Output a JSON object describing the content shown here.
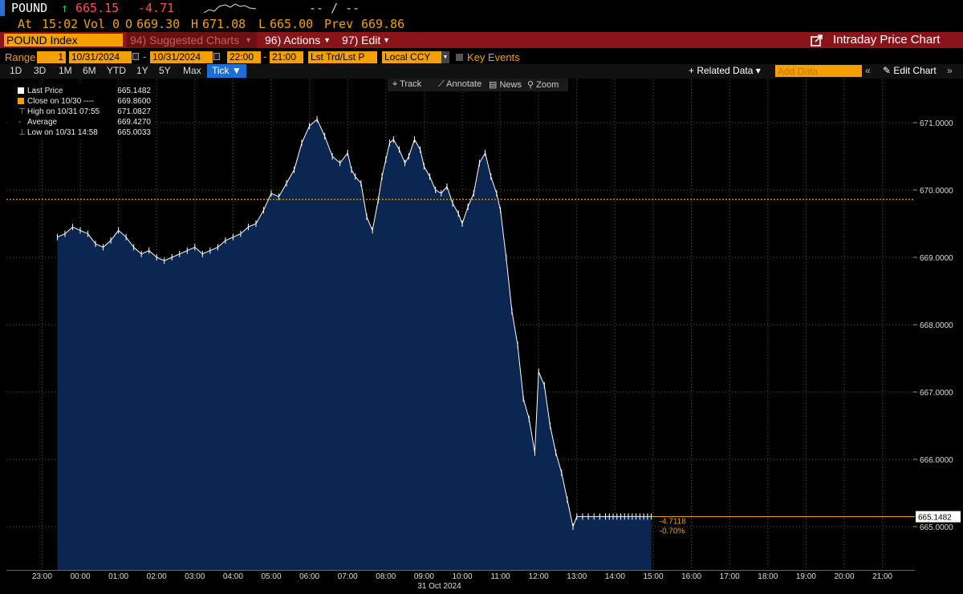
{
  "quote": {
    "ticker": "POUND",
    "arrow": "↑",
    "last": "665.15",
    "change": "-4.71",
    "sparkline_icon": "sparkline-icon",
    "dashes": "-- / --",
    "at_label": "At",
    "time": "15:02",
    "vol_label": "Vol",
    "vol": "0",
    "open_label": "O",
    "open": "669.30",
    "high_label": "H",
    "high": "671.08",
    "low_label": "L",
    "low": "665.00",
    "prev_label": "Prev",
    "prev": "669.86"
  },
  "titlebar": {
    "security": "POUND Index",
    "suggested": "94) Suggested Charts",
    "actions": "96) Actions",
    "edit": "97) Edit",
    "title": "Intraday Price Chart"
  },
  "rangebar": {
    "range_label": "Range",
    "range_value": "1",
    "start_date": "10/31/2024",
    "end_date": "10/31/2024",
    "start_time": "22:00",
    "end_time": "21:00",
    "trade_type": "Lst Trd/Lst P",
    "currency": "Local CCY",
    "key_events": "Key Events"
  },
  "periodbar": {
    "periods": [
      "1D",
      "3D",
      "1M",
      "6M",
      "YTD",
      "1Y",
      "5Y",
      "Max"
    ],
    "tick": "Tick ▼",
    "related": "+ Related Data ▾",
    "add_data_placeholder": "Add Data",
    "edit_chart": "Edit Chart"
  },
  "toolbar": {
    "track": "Track",
    "annotate": "Annotate",
    "news": "News",
    "zoom": "Zoom"
  },
  "legend": {
    "last_price_label": "Last Price",
    "last_price": "665.1482",
    "close_label": "Close on 10/30 ----",
    "close": "669.8600",
    "high_label": "High on 10/31 07:55",
    "high": "671.0827",
    "average_label": "Average",
    "average": "669.4270",
    "low_label": "Low on 10/31 14:58",
    "low": "665.0033"
  },
  "chart_data": {
    "type": "area",
    "x_ticks": [
      "23:00",
      "00:00",
      "01:00",
      "02:00",
      "03:00",
      "04:00",
      "05:00",
      "06:00",
      "07:00",
      "08:00",
      "09:00",
      "10:00",
      "11:00",
      "12:00",
      "13:00",
      "14:00",
      "15:00",
      "16:00",
      "17:00",
      "18:00",
      "19:00",
      "20:00",
      "21:00"
    ],
    "x_date_label": "31 Oct 2024",
    "y_ticks": [
      "671.0000",
      "670.0000",
      "669.0000",
      "668.0000",
      "667.0000",
      "666.0000",
      "665.0000"
    ],
    "ylim": [
      664.4,
      671.6
    ],
    "prev_close": 669.86,
    "last_price_tag": "665.1482",
    "change_annotation": "-4.7118",
    "pct_annotation": "-0.70%",
    "colors": {
      "area": "#0b2650",
      "line": "#ffffff",
      "prev_close": "#f4a000",
      "accent": "#f4a000"
    },
    "series": [
      {
        "x": [
          -0.6,
          -0.4,
          -0.2,
          0.0,
          0.2,
          0.4,
          0.6,
          0.8,
          1.0,
          1.2,
          1.4,
          1.6,
          1.8,
          2.0,
          2.2,
          2.4,
          2.6,
          2.8,
          3.0,
          3.2,
          3.4,
          3.6,
          3.8,
          4.0,
          4.2,
          4.4,
          4.6,
          4.8,
          5.0,
          5.2,
          5.4,
          5.6,
          5.8,
          6.0,
          6.2,
          6.4,
          6.6,
          6.8,
          7.0,
          7.1,
          7.2,
          7.35,
          7.5,
          7.65,
          7.8,
          7.9,
          8.0,
          8.1,
          8.2,
          8.35,
          8.5,
          8.6,
          8.75,
          8.9,
          9.0,
          9.15,
          9.3,
          9.45,
          9.6,
          9.75,
          9.9,
          10.0,
          10.15,
          10.3,
          10.45,
          10.6,
          10.75,
          10.9,
          11.0,
          11.15,
          11.3,
          11.45,
          11.6,
          11.75,
          11.9,
          12.0,
          12.15,
          12.3,
          12.45,
          12.6,
          12.75,
          12.9,
          13.0,
          13.15,
          13.3,
          13.45,
          13.6,
          13.75,
          13.85,
          13.95,
          14.05,
          14.15,
          14.25,
          14.35,
          14.45,
          14.55,
          14.65,
          14.75,
          14.85,
          14.95
        ],
        "y": [
          669.3,
          669.35,
          669.45,
          669.4,
          669.35,
          669.2,
          669.15,
          669.25,
          669.4,
          669.3,
          669.15,
          669.05,
          669.1,
          669.0,
          668.95,
          669.0,
          669.05,
          669.1,
          669.15,
          669.05,
          669.1,
          669.15,
          669.25,
          669.3,
          669.35,
          669.45,
          669.5,
          669.7,
          669.95,
          669.9,
          670.1,
          670.3,
          670.7,
          670.95,
          671.05,
          670.8,
          670.5,
          670.4,
          670.55,
          670.3,
          670.2,
          670.1,
          669.6,
          669.4,
          669.85,
          670.2,
          670.45,
          670.7,
          670.75,
          670.6,
          670.4,
          670.5,
          670.75,
          670.6,
          670.35,
          670.2,
          670.0,
          669.95,
          670.05,
          669.8,
          669.65,
          669.5,
          669.75,
          669.95,
          670.4,
          670.55,
          670.2,
          669.95,
          669.7,
          669.0,
          668.2,
          667.7,
          666.9,
          666.6,
          666.1,
          667.3,
          667.1,
          666.5,
          666.1,
          665.8,
          665.4,
          665.0,
          665.15,
          665.15,
          665.15,
          665.15,
          665.15,
          665.15,
          665.15,
          665.15,
          665.15,
          665.15,
          665.15,
          665.15,
          665.15,
          665.15,
          665.15,
          665.15,
          665.15,
          665.15
        ]
      }
    ]
  }
}
